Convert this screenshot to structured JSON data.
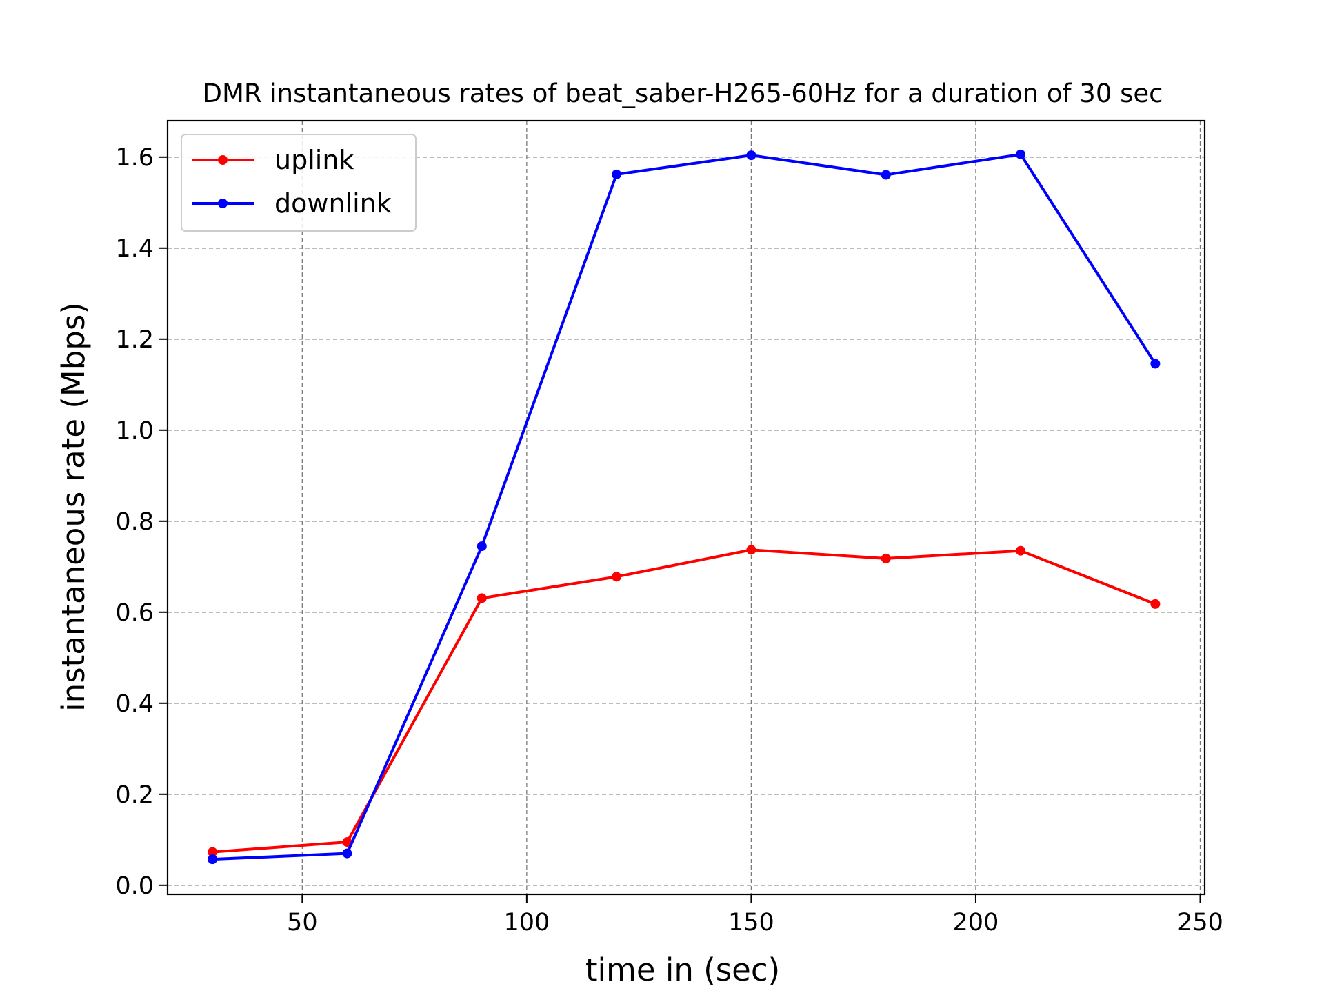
{
  "chart_data": {
    "type": "line",
    "title": "DMR instantaneous rates of beat_saber-H265-60Hz for a duration of 30 sec",
    "xlabel": "time in (sec)",
    "ylabel": "instantaneous rate (Mbps)",
    "x": [
      30,
      60,
      90,
      120,
      150,
      180,
      210,
      240
    ],
    "xlim": [
      20,
      251
    ],
    "ylim": [
      -0.02,
      1.68
    ],
    "xticks": [
      50,
      100,
      150,
      200,
      250
    ],
    "yticks": [
      0.0,
      0.2,
      0.4,
      0.6,
      0.8,
      1.0,
      1.2,
      1.4,
      1.6
    ],
    "grid": true,
    "legend_position": "top-left",
    "series": [
      {
        "name": "uplink",
        "color": "#ff0000",
        "values": [
          0.073,
          0.095,
          0.631,
          0.678,
          0.737,
          0.718,
          0.735,
          0.618
        ]
      },
      {
        "name": "downlink",
        "color": "#0000ff",
        "values": [
          0.057,
          0.07,
          0.745,
          1.562,
          1.604,
          1.561,
          1.606,
          1.146
        ]
      }
    ]
  }
}
